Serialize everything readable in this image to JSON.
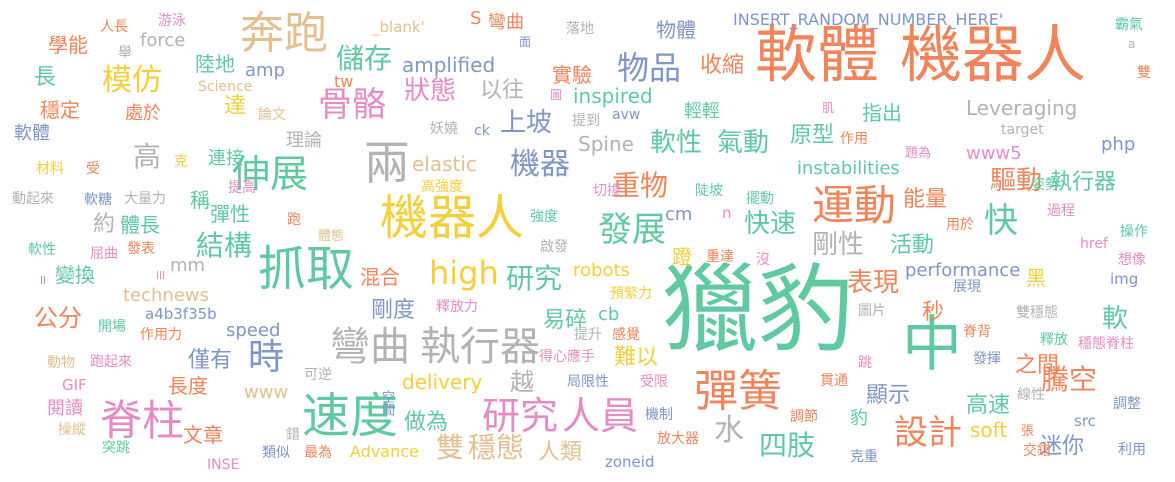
{
  "palette": {
    "orange": "#f0845a",
    "green": "#5fc9a0",
    "blue": "#7f96c8",
    "pink": "#e68cc5",
    "lime": "#a8d356",
    "yellow": "#f5cf3c",
    "tan": "#e3c08f",
    "gray": "#b3b3b3"
  },
  "words": [
    {
      "text": "軟體",
      "color": "orange"
    },
    {
      "text": "機器人",
      "color": "orange"
    },
    {
      "text": "獵豹",
      "color": "green"
    },
    {
      "text": "機器人",
      "color": "yellow"
    },
    {
      "text": "抓取",
      "color": "green"
    },
    {
      "text": "奔跑",
      "color": "tan"
    },
    {
      "text": "中",
      "color": "green"
    },
    {
      "text": "速度",
      "color": "green"
    },
    {
      "text": "彈簧",
      "color": "orange"
    },
    {
      "text": "脊柱",
      "color": "pink"
    },
    {
      "text": "兩",
      "color": "gray"
    },
    {
      "text": "運動",
      "color": "orange"
    },
    {
      "text": "彎曲",
      "color": "gray"
    },
    {
      "text": "執行器",
      "color": "gray"
    },
    {
      "text": "研究",
      "color": "pink"
    },
    {
      "text": "人員",
      "color": "pink"
    },
    {
      "text": "伸展",
      "color": "green"
    },
    {
      "text": "骨骼",
      "color": "pink"
    },
    {
      "text": "時",
      "color": "blue"
    },
    {
      "text": "high",
      "color": "yellow"
    },
    {
      "text": "發展",
      "color": "green"
    },
    {
      "text": "設計",
      "color": "orange"
    },
    {
      "text": "快",
      "color": "green"
    },
    {
      "text": "物品",
      "color": "blue"
    },
    {
      "text": "儲存",
      "color": "green"
    },
    {
      "text": "模仿",
      "color": "yellow"
    },
    {
      "text": "結構",
      "color": "green"
    },
    {
      "text": "四肢",
      "color": "green"
    },
    {
      "text": "騰空",
      "color": "orange"
    },
    {
      "text": "雙",
      "color": "tan"
    },
    {
      "text": "穩態",
      "color": "tan"
    },
    {
      "text": "研究",
      "color": "green"
    },
    {
      "text": "機器",
      "color": "blue"
    },
    {
      "text": "狀態",
      "color": "pink"
    },
    {
      "text": "上坡",
      "color": "blue"
    },
    {
      "text": "軟性",
      "color": "green"
    },
    {
      "text": "氣動",
      "color": "green"
    },
    {
      "text": "高",
      "color": "gray"
    },
    {
      "text": "重物",
      "color": "orange"
    },
    {
      "text": "剛性",
      "color": "gray"
    },
    {
      "text": "表現",
      "color": "orange"
    },
    {
      "text": "驅動",
      "color": "orange"
    },
    {
      "text": "執行器",
      "color": "green"
    },
    {
      "text": "快速",
      "color": "green"
    },
    {
      "text": "能量",
      "color": "orange"
    },
    {
      "text": "活動",
      "color": "green"
    },
    {
      "text": "之間",
      "color": "orange"
    },
    {
      "text": "高速",
      "color": "green"
    },
    {
      "text": "公分",
      "color": "orange"
    },
    {
      "text": "做為",
      "color": "green"
    },
    {
      "text": "原型",
      "color": "green"
    },
    {
      "text": "軟",
      "color": "green"
    },
    {
      "text": "水",
      "color": "gray"
    },
    {
      "text": "迷你",
      "color": "blue"
    },
    {
      "text": "人類",
      "color": "tan"
    },
    {
      "text": "顯示",
      "color": "blue"
    },
    {
      "text": "收縮",
      "color": "orange"
    },
    {
      "text": "達",
      "color": "yellow"
    },
    {
      "text": "長",
      "color": "green"
    },
    {
      "text": "僅有",
      "color": "blue"
    },
    {
      "text": "剛度",
      "color": "blue"
    },
    {
      "text": "易碎",
      "color": "green"
    },
    {
      "text": "難以",
      "color": "yellow"
    },
    {
      "text": "越",
      "color": "gray"
    },
    {
      "text": "以往",
      "color": "gray"
    },
    {
      "text": "物體",
      "color": "blue"
    },
    {
      "text": "體長",
      "color": "green"
    },
    {
      "text": "長度",
      "color": "orange"
    },
    {
      "text": "文章",
      "color": "orange"
    },
    {
      "text": "陸地",
      "color": "green"
    },
    {
      "text": "實驗",
      "color": "orange"
    },
    {
      "text": "指出",
      "color": "green"
    },
    {
      "text": "連接",
      "color": "green"
    },
    {
      "text": "彈性",
      "color": "green"
    },
    {
      "text": "秒",
      "color": "orange"
    },
    {
      "text": "蹬",
      "color": "yellow"
    },
    {
      "text": "混合",
      "color": "orange"
    },
    {
      "text": "變換",
      "color": "green"
    },
    {
      "text": "處於",
      "color": "orange"
    },
    {
      "text": "學能",
      "color": "orange"
    },
    {
      "text": "穩定",
      "color": "orange"
    },
    {
      "text": "閱讀",
      "color": "pink"
    },
    {
      "text": "約",
      "color": "gray"
    },
    {
      "text": "稱",
      "color": "green"
    },
    {
      "text": "輕輕",
      "color": "green"
    },
    {
      "text": "黑",
      "color": "yellow"
    },
    {
      "text": "理論",
      "color": "gray"
    },
    {
      "text": "豹",
      "color": "green"
    },
    {
      "text": "amplified",
      "color": "blue"
    },
    {
      "text": "inspired",
      "color": "green"
    },
    {
      "text": "Leveraging",
      "color": "gray"
    },
    {
      "text": "instabilities",
      "color": "green"
    },
    {
      "text": "performance",
      "color": "blue"
    },
    {
      "text": "robots",
      "color": "yellow"
    },
    {
      "text": "delivery",
      "color": "yellow"
    },
    {
      "text": "elastic",
      "color": "tan"
    },
    {
      "text": "Spine",
      "color": "gray"
    },
    {
      "text": "soft",
      "color": "yellow"
    },
    {
      "text": "speed",
      "color": "blue"
    },
    {
      "text": "technews",
      "color": "tan"
    },
    {
      "text": "force",
      "color": "gray"
    },
    {
      "text": "amp",
      "color": "blue"
    },
    {
      "text": "www5",
      "color": "pink"
    },
    {
      "text": "php",
      "color": "blue"
    },
    {
      "text": "cm",
      "color": "blue"
    },
    {
      "text": "cb",
      "color": "green"
    },
    {
      "text": "mm",
      "color": "gray"
    },
    {
      "text": "www",
      "color": "tan"
    },
    {
      "text": "tw",
      "color": "orange"
    },
    {
      "text": "INSERT_RANDOM_NUMBER_HERE'",
      "color": "blue"
    },
    {
      "text": "_blank'",
      "color": "tan"
    },
    {
      "text": "Science",
      "color": "tan"
    },
    {
      "text": "a4b3f35b",
      "color": "blue"
    },
    {
      "text": "Advance",
      "color": "yellow"
    },
    {
      "text": "zoneid",
      "color": "blue"
    },
    {
      "text": "GIF",
      "color": "pink"
    },
    {
      "text": "INSE",
      "color": "pink"
    },
    {
      "text": "avw",
      "color": "blue"
    },
    {
      "text": "ck",
      "color": "blue"
    },
    {
      "text": "target",
      "color": "gray"
    },
    {
      "text": "src",
      "color": "blue"
    },
    {
      "text": "img",
      "color": "blue"
    },
    {
      "text": "href",
      "color": "pink"
    },
    {
      "text": "n",
      "color": "pink"
    },
    {
      "text": "ll",
      "color": "blue"
    },
    {
      "text": "lll",
      "color": "pink"
    },
    {
      "text": "a",
      "color": "gray"
    },
    {
      "text": "S",
      "color": "orange"
    },
    {
      "text": "彎曲",
      "color": "orange"
    },
    {
      "text": "面",
      "color": "blue"
    },
    {
      "text": "落地",
      "color": "gray"
    },
    {
      "text": "人長",
      "color": "orange"
    },
    {
      "text": "游泳",
      "color": "pink"
    },
    {
      "text": "舉",
      "color": "gray"
    },
    {
      "text": "霸氣",
      "color": "green"
    },
    {
      "text": "雙",
      "color": "orange"
    },
    {
      "text": "論文",
      "color": "tan"
    },
    {
      "text": "妖嬈",
      "color": "gray"
    },
    {
      "text": "提到",
      "color": "gray"
    },
    {
      "text": "圖",
      "color": "pink"
    },
    {
      "text": "肌",
      "color": "pink"
    },
    {
      "text": "作用",
      "color": "orange"
    },
    {
      "text": "題為",
      "color": "pink"
    },
    {
      "text": "姿勢",
      "color": "green"
    },
    {
      "text": "過程",
      "color": "pink"
    },
    {
      "text": "操作",
      "color": "green"
    },
    {
      "text": "想像",
      "color": "pink"
    },
    {
      "text": "材料",
      "color": "yellow"
    },
    {
      "text": "受",
      "color": "orange"
    },
    {
      "text": "克",
      "color": "yellow"
    },
    {
      "text": "軟體",
      "color": "blue"
    },
    {
      "text": "動起來",
      "color": "gray"
    },
    {
      "text": "軟糖",
      "color": "blue"
    },
    {
      "text": "大量力",
      "color": "gray"
    },
    {
      "text": "提高",
      "color": "pink"
    },
    {
      "text": "高強度",
      "color": "yellow"
    },
    {
      "text": "切換",
      "color": "pink"
    },
    {
      "text": "陡坡",
      "color": "green"
    },
    {
      "text": "擺動",
      "color": "green"
    },
    {
      "text": "用於",
      "color": "orange"
    },
    {
      "text": "跑",
      "color": "orange"
    },
    {
      "text": "強度",
      "color": "green"
    },
    {
      "text": "體態",
      "color": "tan"
    },
    {
      "text": "軟性",
      "color": "green"
    },
    {
      "text": "屈曲",
      "color": "pink"
    },
    {
      "text": "發表",
      "color": "orange"
    },
    {
      "text": "啟發",
      "color": "gray"
    },
    {
      "text": "重達",
      "color": "orange"
    },
    {
      "text": "沒",
      "color": "pink"
    },
    {
      "text": "預緊力",
      "color": "yellow"
    },
    {
      "text": "釋放力",
      "color": "pink"
    },
    {
      "text": "展現",
      "color": "blue"
    },
    {
      "text": "雙穩態",
      "color": "gray"
    },
    {
      "text": "開場",
      "color": "green"
    },
    {
      "text": "作用力",
      "color": "orange"
    },
    {
      "text": "提升",
      "color": "gray"
    },
    {
      "text": "感覺",
      "color": "orange"
    },
    {
      "text": "圖片",
      "color": "gray"
    },
    {
      "text": "脊背",
      "color": "orange"
    },
    {
      "text": "釋放",
      "color": "green"
    },
    {
      "text": "穩態脊柱",
      "color": "pink"
    },
    {
      "text": "動物",
      "color": "tan"
    },
    {
      "text": "跑起來",
      "color": "pink"
    },
    {
      "text": "得心應手",
      "color": "pink"
    },
    {
      "text": "發揮",
      "color": "blue"
    },
    {
      "text": "跳",
      "color": "pink"
    },
    {
      "text": "可逆",
      "color": "gray"
    },
    {
      "text": "局限性",
      "color": "blue"
    },
    {
      "text": "受限",
      "color": "pink"
    },
    {
      "text": "貫通",
      "color": "orange"
    },
    {
      "text": "線性",
      "color": "gray"
    },
    {
      "text": "調整",
      "color": "blue"
    },
    {
      "text": "空間",
      "color": "blue"
    },
    {
      "text": "操縱",
      "color": "tan"
    },
    {
      "text": "機制",
      "color": "blue"
    },
    {
      "text": "調節",
      "color": "orange"
    },
    {
      "text": "錯",
      "color": "gray"
    },
    {
      "text": "張",
      "color": "orange"
    },
    {
      "text": "交錯",
      "color": "orange"
    },
    {
      "text": "突跳",
      "color": "green"
    },
    {
      "text": "類似",
      "color": "blue"
    },
    {
      "text": "最為",
      "color": "orange"
    },
    {
      "text": "放大器",
      "color": "orange"
    },
    {
      "text": "克重",
      "color": "blue"
    },
    {
      "text": "利用",
      "color": "blue"
    }
  ]
}
